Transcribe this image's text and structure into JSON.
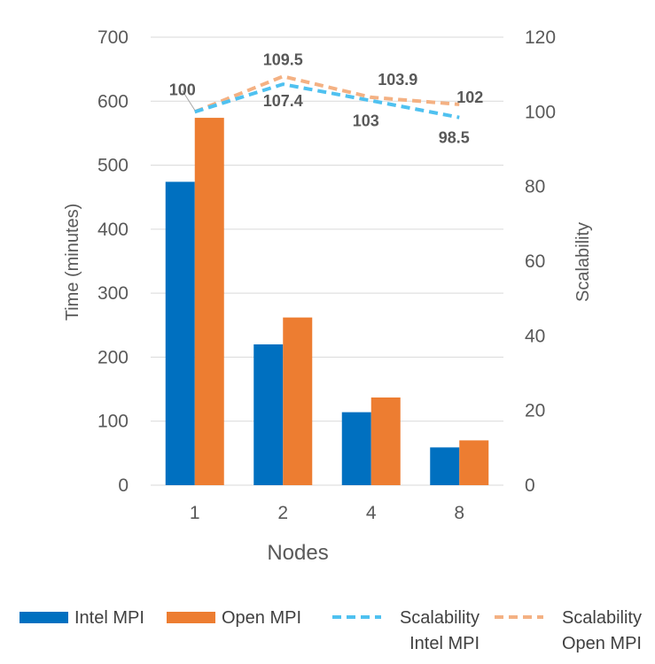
{
  "chart_data": {
    "type": "bar",
    "categories": [
      "1",
      "2",
      "4",
      "8"
    ],
    "xlabel": "Nodes",
    "ylabel": "Time (minutes)",
    "y2label": "Scalability",
    "ylim": [
      0,
      700
    ],
    "y2lim": [
      0,
      120
    ],
    "yticks": [
      "0",
      "100",
      "200",
      "300",
      "400",
      "500",
      "600",
      "700"
    ],
    "y2ticks": [
      "0",
      "20",
      "40",
      "60",
      "80",
      "100",
      "120"
    ],
    "grid": true,
    "legend_position": "bottom",
    "series": [
      {
        "name": "Intel MPI",
        "kind": "bar",
        "axis": "left",
        "color": "#0070C0",
        "values": [
          474,
          220,
          114,
          59
        ]
      },
      {
        "name": "Open MPI",
        "kind": "bar",
        "axis": "left",
        "color": "#ED7D31",
        "values": [
          574,
          262,
          137,
          70
        ]
      },
      {
        "name": "Scalability Intel MPI",
        "legend_lines": [
          "Scalability",
          "Intel MPI"
        ],
        "kind": "line",
        "style": "dashed",
        "axis": "right",
        "color": "#4FC1F0",
        "values": [
          100,
          107.4,
          103,
          98.5
        ],
        "labels": [
          "100",
          "107.4",
          "103",
          "98.5"
        ]
      },
      {
        "name": "Scalability Open MPI",
        "legend_lines": [
          "Scalability",
          "Open MPI"
        ],
        "kind": "line",
        "style": "dashed",
        "axis": "right",
        "color": "#F4B183",
        "values": [
          100,
          109.5,
          103.9,
          102
        ],
        "labels": [
          "",
          "109.5",
          "103.9",
          "102"
        ]
      }
    ]
  }
}
